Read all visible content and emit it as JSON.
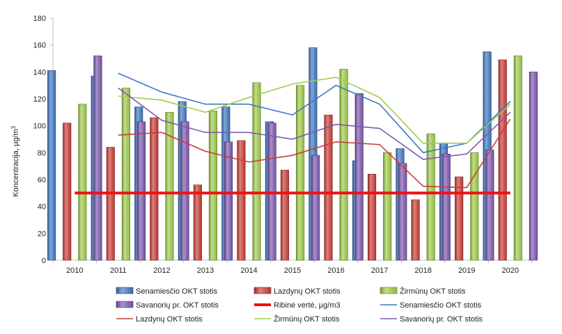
{
  "chart_data": {
    "type": "bar",
    "categories": [
      "2010",
      "2011",
      "2012",
      "2013",
      "2014",
      "2015",
      "2016",
      "2017",
      "2018",
      "2019",
      "2020"
    ],
    "ylabel": "Koncentracija, µg/m",
    "ylabel_sup": "3",
    "ylim": [
      0,
      180
    ],
    "yticks": [
      0,
      20,
      40,
      60,
      80,
      100,
      120,
      140,
      160,
      180
    ],
    "grid": false,
    "bar_series": [
      {
        "name": "Senamiesčio OKT stotis",
        "color": "#3d78c4",
        "values": [
          141,
          137,
          114,
          118,
          114,
          103,
          158,
          74,
          83,
          87,
          155
        ]
      },
      {
        "name": "Lazdynų OKT stotis",
        "color": "#cc3b36",
        "values": [
          102,
          84,
          106,
          56,
          89,
          67,
          108,
          64,
          45,
          62,
          149
        ]
      },
      {
        "name": "Žirmūnų OKT stotis",
        "color": "#9fcc4a",
        "values": [
          116,
          128,
          110,
          111,
          132,
          130,
          142,
          80,
          94,
          80,
          152
        ]
      },
      {
        "name": "Savanorių pr. OKT stotis",
        "color": "#7e57b0",
        "values": [
          152,
          103,
          103,
          88,
          102,
          78,
          124,
          72,
          79,
          82,
          140
        ]
      }
    ],
    "threshold": {
      "name": "Ribinė vertė, µg/m3",
      "color": "#ee1111",
      "value": 50,
      "from": "2010",
      "to": "2020"
    },
    "line_series": [
      {
        "name": "Senamiesčio OKT stotis",
        "color": "#3d78c4",
        "values": [
          null,
          139,
          125,
          116,
          116,
          108,
          130,
          116,
          80,
          87,
          118
        ]
      },
      {
        "name": "Lazdynų OKT stotis",
        "color": "#cc3b36",
        "values": [
          null,
          93,
          95,
          81,
          73,
          78,
          88,
          86,
          55,
          54,
          105
        ]
      },
      {
        "name": "Žirmūnų OKT stotis",
        "color": "#9fcc4a",
        "values": [
          null,
          122,
          119,
          110,
          121,
          131,
          136,
          121,
          87,
          87,
          116
        ]
      },
      {
        "name": "Savanorių pr. OKT stotis",
        "color": "#7e57b0",
        "values": [
          null,
          128,
          104,
          95,
          95,
          90,
          101,
          98,
          75,
          79,
          110
        ]
      }
    ],
    "legend_placement": "bottom"
  }
}
